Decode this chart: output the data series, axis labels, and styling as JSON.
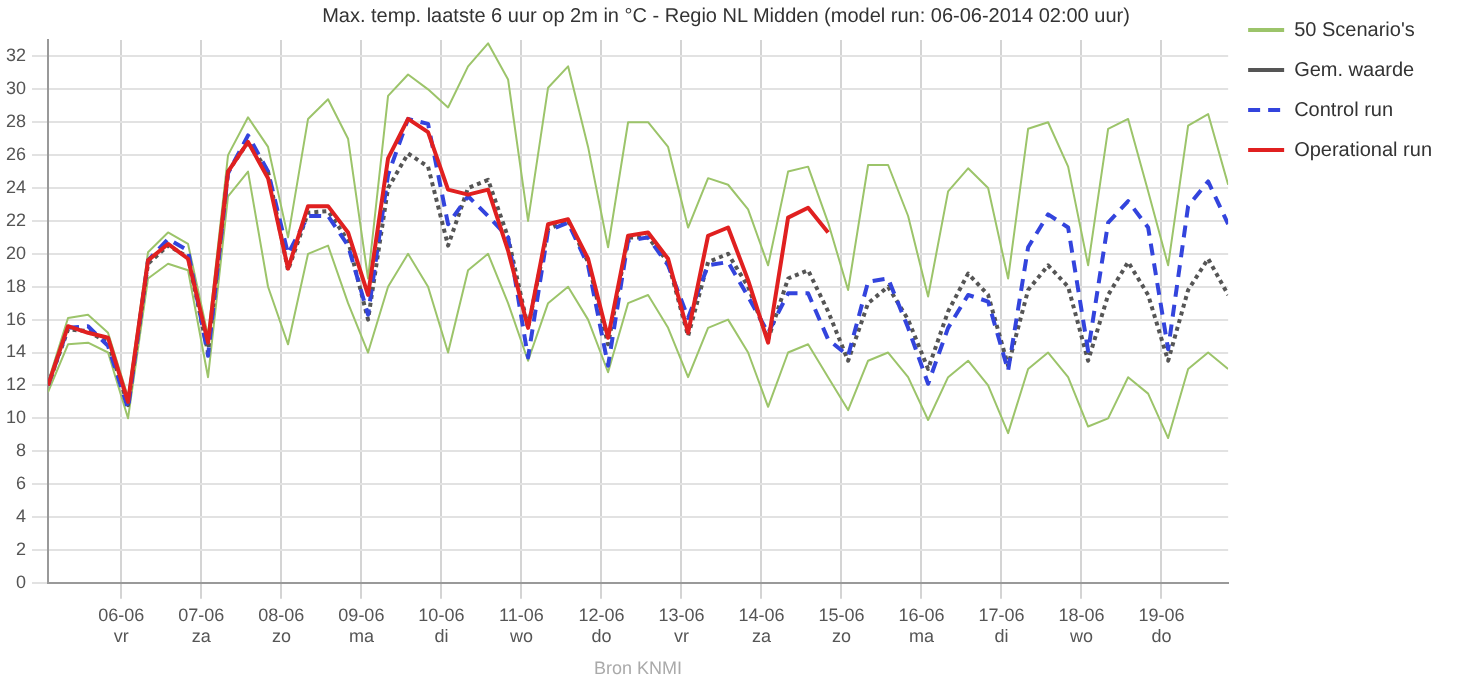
{
  "chart_data": {
    "type": "line",
    "title": "Max. temp. laatste 6 uur op 2m in °C - Regio NL Midden (model run: 06-06-2014 02:00 uur)",
    "annotations": [
      "Bron KNMI"
    ],
    "x": [
      "2014-06-05T02:00",
      "2014-06-05T08:00",
      "2014-06-05T14:00",
      "2014-06-05T20:00",
      "2014-06-06T02:00",
      "2014-06-06T08:00",
      "2014-06-06T14:00",
      "2014-06-06T20:00",
      "2014-06-07T02:00",
      "2014-06-07T08:00",
      "2014-06-07T14:00",
      "2014-06-07T20:00",
      "2014-06-08T02:00",
      "2014-06-08T08:00",
      "2014-06-08T14:00",
      "2014-06-08T20:00",
      "2014-06-09T02:00",
      "2014-06-09T08:00",
      "2014-06-09T14:00",
      "2014-06-09T20:00",
      "2014-06-10T02:00",
      "2014-06-10T08:00",
      "2014-06-10T14:00",
      "2014-06-10T20:00",
      "2014-06-11T02:00",
      "2014-06-11T08:00",
      "2014-06-11T14:00",
      "2014-06-11T20:00",
      "2014-06-12T02:00",
      "2014-06-12T08:00",
      "2014-06-12T14:00",
      "2014-06-12T20:00",
      "2014-06-13T02:00",
      "2014-06-13T08:00",
      "2014-06-13T14:00",
      "2014-06-13T20:00",
      "2014-06-14T02:00",
      "2014-06-14T08:00",
      "2014-06-14T14:00",
      "2014-06-14T20:00",
      "2014-06-15T02:00",
      "2014-06-15T08:00",
      "2014-06-15T14:00",
      "2014-06-15T20:00",
      "2014-06-16T02:00",
      "2014-06-16T08:00",
      "2014-06-16T14:00",
      "2014-06-16T20:00",
      "2014-06-17T02:00",
      "2014-06-17T08:00",
      "2014-06-17T14:00",
      "2014-06-17T20:00",
      "2014-06-18T02:00",
      "2014-06-18T08:00",
      "2014-06-18T14:00",
      "2014-06-18T20:00",
      "2014-06-19T02:00",
      "2014-06-19T08:00",
      "2014-06-19T14:00",
      "2014-06-19T20:00"
    ],
    "xlim": [
      "2014-06-05T02:00",
      "2014-06-19T20:00"
    ],
    "xticks": [
      {
        "value": "2014-06-06",
        "label": "06-06 vr"
      },
      {
        "value": "2014-06-07",
        "label": "07-06 za"
      },
      {
        "value": "2014-06-08",
        "label": "08-06 zo"
      },
      {
        "value": "2014-06-09",
        "label": "09-06 ma"
      },
      {
        "value": "2014-06-10",
        "label": "10-06 di"
      },
      {
        "value": "2014-06-11",
        "label": "11-06 wo"
      },
      {
        "value": "2014-06-12",
        "label": "12-06 do"
      },
      {
        "value": "2014-06-13",
        "label": "13-06 vr"
      },
      {
        "value": "2014-06-14",
        "label": "14-06 za"
      },
      {
        "value": "2014-06-15",
        "label": "15-06 zo"
      },
      {
        "value": "2014-06-16",
        "label": "16-06 ma"
      },
      {
        "value": "2014-06-17",
        "label": "17-06 di"
      },
      {
        "value": "2014-06-18",
        "label": "18-06 wo"
      },
      {
        "value": "2014-06-19",
        "label": "19-06 do"
      }
    ],
    "ylim": [
      0,
      33
    ],
    "yticks": [
      0,
      2,
      4,
      6,
      8,
      10,
      12,
      14,
      16,
      18,
      20,
      22,
      24,
      26,
      28,
      30,
      32
    ],
    "grid": true,
    "legend": "top right",
    "marker": "none",
    "series": [
      {
        "name": "50 Scenario's",
        "color": "#9cc46a",
        "line_style": "solid",
        "values": [
          12.2,
          16.1,
          16.3,
          15.2,
          11.3,
          20.1,
          21.3,
          20.6,
          15.0,
          26.0,
          28.3,
          26.5,
          21.0,
          28.2,
          29.4,
          27.0,
          18.5,
          29.6,
          30.9,
          30.0,
          28.9,
          31.4,
          32.8,
          30.6,
          22.0,
          30.1,
          31.4,
          26.5,
          20.4,
          28.0,
          28.0,
          26.5,
          21.6,
          24.6,
          24.2,
          22.7,
          19.3,
          25.0,
          25.3,
          21.9,
          17.8,
          25.4,
          25.4,
          22.3,
          17.4,
          23.8,
          25.2,
          24.0,
          18.5,
          27.6,
          28.0,
          25.3,
          19.3,
          27.6,
          28.2,
          23.8,
          19.3,
          27.8,
          28.5,
          24.2
        ]
      },
      {
        "color": "#9cc46a",
        "line_style": "solid",
        "values": [
          11.6,
          14.5,
          14.6,
          14.0,
          10.0,
          18.5,
          19.4,
          19.0,
          12.5,
          23.5,
          25.0,
          18.0,
          14.5,
          20.0,
          20.5,
          17.0,
          14.0,
          18.0,
          20.0,
          18.0,
          14.0,
          19.0,
          20.0,
          17.0,
          13.5,
          17.0,
          18.0,
          16.0,
          12.8,
          17.0,
          17.5,
          15.5,
          12.5,
          15.5,
          16.0,
          14.0,
          10.7,
          14.0,
          14.5,
          12.5,
          10.5,
          13.5,
          14.0,
          12.5,
          9.9,
          12.5,
          13.5,
          12.0,
          9.1,
          13.0,
          14.0,
          12.5,
          9.5,
          10.0,
          12.5,
          11.5,
          8.8,
          13.0,
          14.0,
          13.0
        ]
      },
      {
        "name": "Gem. waarde",
        "color": "#555555",
        "line_style": "dotted",
        "values": [
          12.0,
          15.4,
          15.3,
          14.6,
          10.8,
          19.4,
          20.5,
          19.8,
          14.0,
          25.0,
          26.8,
          25.0,
          19.0,
          22.5,
          22.6,
          20.8,
          16.0,
          24.0,
          26.1,
          25.3,
          20.5,
          24.0,
          24.5,
          21.0,
          15.5,
          21.5,
          22.0,
          19.5,
          14.5,
          21.0,
          21.0,
          19.5,
          15.0,
          19.5,
          20.0,
          18.0,
          14.8,
          18.5,
          19.0,
          16.5,
          13.5,
          17.0,
          18.0,
          16.0,
          13.0,
          16.5,
          18.8,
          17.5,
          13.2,
          17.8,
          19.3,
          18.0,
          13.5,
          17.5,
          19.5,
          17.5,
          13.5,
          17.8,
          19.7,
          17.5
        ]
      },
      {
        "name": "Control run",
        "color": "#3344dd",
        "line_style": "dashed",
        "values": [
          12.0,
          15.5,
          15.6,
          14.4,
          10.6,
          19.6,
          20.9,
          20.2,
          13.8,
          24.9,
          27.2,
          25.0,
          20.0,
          22.3,
          22.3,
          20.5,
          16.3,
          24.8,
          28.2,
          27.9,
          21.8,
          23.5,
          22.3,
          21.0,
          13.7,
          21.4,
          21.9,
          19.3,
          13.2,
          20.8,
          21.0,
          19.3,
          16.1,
          19.3,
          19.5,
          17.4,
          15.2,
          17.6,
          17.6,
          14.8,
          13.8,
          18.3,
          18.5,
          15.5,
          12.1,
          15.5,
          17.5,
          17.1,
          12.9,
          20.4,
          22.4,
          21.6,
          14.1,
          21.9,
          23.2,
          21.6,
          14.2,
          22.9,
          24.4,
          21.8
        ]
      },
      {
        "name": "Operational run",
        "color": "#e02020",
        "line_style": "solid",
        "values": [
          12.0,
          15.6,
          15.2,
          14.9,
          11.0,
          19.6,
          20.6,
          19.7,
          14.6,
          25.0,
          26.8,
          24.6,
          19.1,
          22.9,
          22.9,
          21.3,
          17.5,
          25.8,
          28.2,
          27.4,
          23.9,
          23.6,
          23.9,
          20.2,
          15.5,
          21.8,
          22.1,
          19.7,
          14.9,
          21.1,
          21.3,
          19.7,
          15.2,
          21.1,
          21.6,
          18.4,
          14.6,
          22.2,
          22.8,
          21.3,
          null,
          null,
          null,
          null,
          null,
          null,
          null,
          null,
          null,
          null,
          null,
          null,
          null,
          null,
          null,
          null,
          null,
          null,
          null,
          null
        ]
      }
    ]
  }
}
